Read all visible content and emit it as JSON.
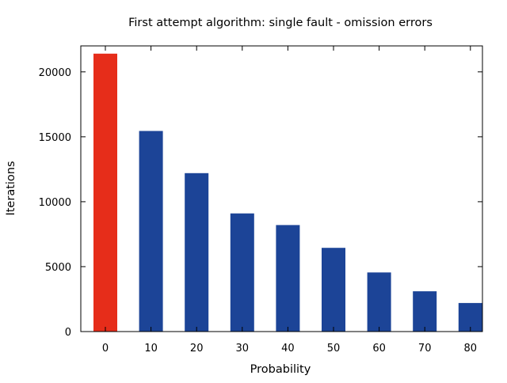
{
  "chart_data": {
    "type": "bar",
    "title": "First attempt algorithm: single fault - omission errors",
    "xlabel": "Probability",
    "ylabel": "Iterations",
    "categories": [
      "0",
      "10",
      "20",
      "30",
      "40",
      "50",
      "60",
      "70",
      "80"
    ],
    "values": [
      21400,
      15450,
      12200,
      9100,
      8200,
      6450,
      4550,
      3100,
      2200
    ],
    "bar_colors": [
      "#e62d1a",
      "#1c4497",
      "#1c4497",
      "#1c4497",
      "#1c4497",
      "#1c4497",
      "#1c4497",
      "#1c4497",
      "#1c4497"
    ],
    "ylim": [
      0,
      22000
    ],
    "yticks": [
      0,
      5000,
      10000,
      15000,
      20000
    ],
    "ytick_labels": [
      "0",
      "5000",
      "10000",
      "15000",
      "20000"
    ],
    "grid": false,
    "legend": "none"
  }
}
